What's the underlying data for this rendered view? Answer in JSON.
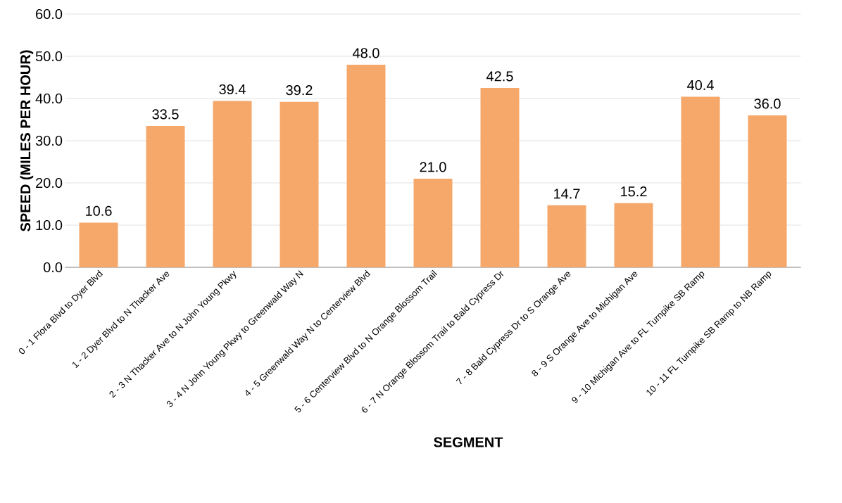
{
  "chart_data": {
    "type": "bar",
    "xlabel": "SEGMENT",
    "ylabel": "SPEED (MILES PER HOUR)",
    "categories": [
      "0 - 1 Flora Blvd to Dyer Blvd",
      "1 - 2 Dyer Blvd to N Thacker Ave",
      "2 - 3 N Thacker Ave to N John Young Pkwy",
      "3 - 4 N John Young Pkwy to Greenwald Way N",
      "4 - 5 Greenwald Way N to Centerview Blvd",
      "5 - 6 Centerview Blvd to N Orange Blossom Trail",
      "6 - 7 N Orange Blossom Trail to Bald Cypress Dr",
      "7 - 8 Bald Cypress Dr to S Orange Ave",
      "8 - 9 S Orange Ave to Michigan Ave",
      "9 - 10 Michigan Ave to FL Turnpike SB Ramp",
      "10 - 11 FL Turnpike SB Ramp to NB Ramp"
    ],
    "values": [
      10.6,
      33.5,
      39.4,
      39.2,
      48.0,
      21.0,
      42.5,
      14.7,
      15.2,
      40.4,
      36.0
    ],
    "value_labels": [
      "10.6",
      "33.5",
      "39.4",
      "39.2",
      "48.0",
      "21.0",
      "42.5",
      "14.7",
      "15.2",
      "40.4",
      "36.0"
    ],
    "color": "#f5a86a",
    "ylim": [
      0,
      60
    ],
    "yticks": [
      {
        "value": 0,
        "label": "0.0"
      },
      {
        "value": 10,
        "label": "10.0"
      },
      {
        "value": 20,
        "label": "20.0"
      },
      {
        "value": 30,
        "label": "30.0"
      },
      {
        "value": 40,
        "label": "40.0"
      },
      {
        "value": 50,
        "label": "50.0"
      },
      {
        "value": 60,
        "label": "60.0"
      }
    ],
    "grid": "y"
  }
}
